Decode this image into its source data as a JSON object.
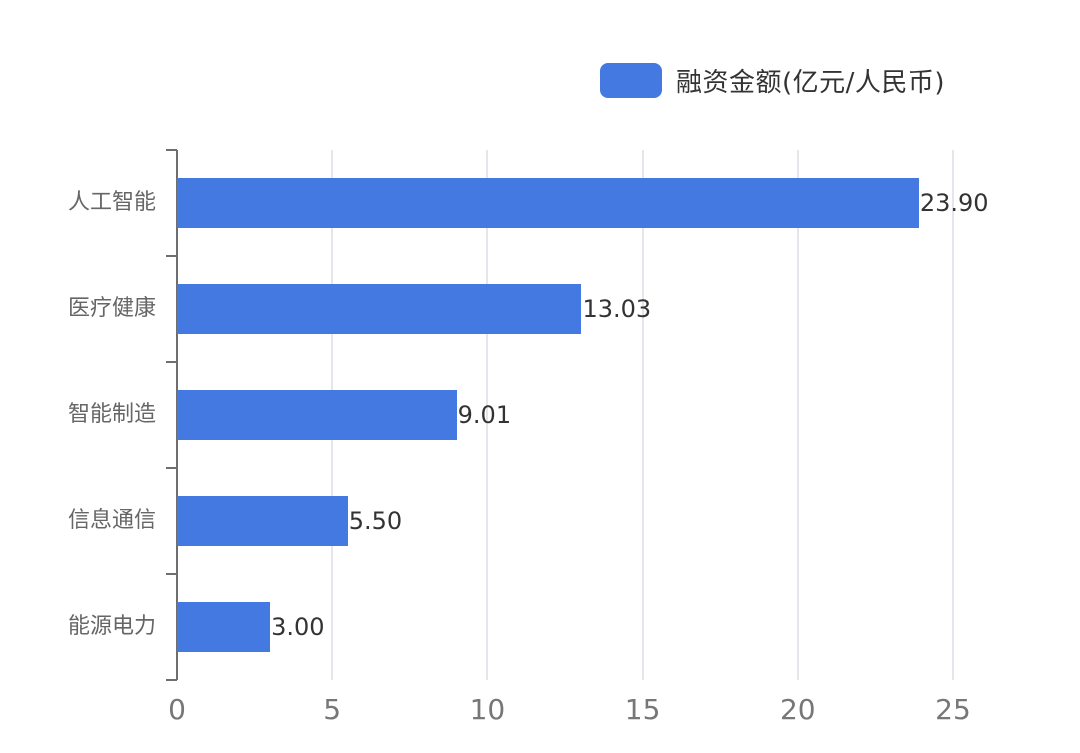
{
  "chart_data": {
    "type": "bar",
    "orientation": "horizontal",
    "title": "",
    "xlabel": "",
    "ylabel": "",
    "categories": [
      "人工智能",
      "医疗健康",
      "智能制造",
      "信息通信",
      "能源电力"
    ],
    "series": [
      {
        "name": "融资金额(亿元/人民币)",
        "color": "#4479e1",
        "values": [
          23.9,
          13.03,
          9.01,
          5.5,
          3.0
        ]
      }
    ],
    "value_labels": [
      "23.90",
      "13.03",
      "9.01",
      "5.50",
      "3.00"
    ],
    "xlim": [
      0,
      25
    ],
    "x_ticks": [
      "0",
      "5",
      "10",
      "15",
      "20",
      "25"
    ],
    "grid": {
      "x": true,
      "y": false
    },
    "legend_position": "top-right"
  },
  "legend": {
    "label": "融资金额(亿元/人民币)",
    "color": "#4479e1"
  }
}
